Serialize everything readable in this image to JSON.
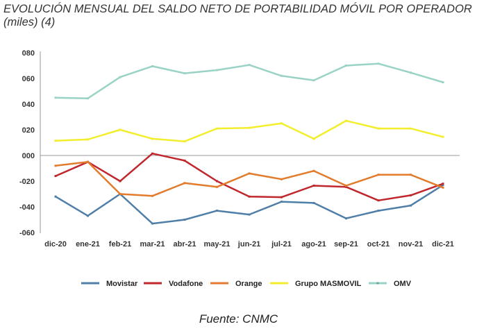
{
  "title": "EVOLUCIÓN MENSUAL DEL SALDO NETO DE PORTABILIDAD MÓVIL POR OPERADOR (miles) (4)",
  "source": "Fuente: CNMC",
  "chart_data": {
    "type": "line",
    "title": "EVOLUCIÓN MENSUAL DEL SALDO NETO DE PORTABILIDAD MÓVIL POR OPERADOR (miles) (4)",
    "xlabel": "",
    "ylabel": "",
    "ylim": [
      -60,
      80
    ],
    "yticks": [
      80,
      60,
      40,
      20,
      0,
      -20,
      -40,
      -60
    ],
    "ytick_labels": [
      "080",
      "060",
      "040",
      "020",
      "000",
      "-020",
      "-040",
      "-060"
    ],
    "grid": false,
    "legend": "bottom",
    "categories": [
      "dic-20",
      "ene-21",
      "feb-21",
      "mar-21",
      "abr-21",
      "may-21",
      "jun-21",
      "jul-21",
      "ago-21",
      "sep-21",
      "oct-21",
      "nov-21",
      "dic-21"
    ],
    "series": [
      {
        "name": "Movistar",
        "color": "#4f7fa8",
        "values": [
          -32,
          -47,
          -30,
          -53,
          -50,
          -43,
          -46,
          -36,
          -37,
          -49,
          -43,
          -39,
          -23
        ]
      },
      {
        "name": "Vodafone",
        "color": "#c0272d",
        "values": [
          -16,
          -5,
          -20,
          1.5,
          -4,
          -20,
          -32,
          -32.5,
          -23.5,
          -24.5,
          -35,
          -31,
          -22
        ]
      },
      {
        "name": "Orange",
        "color": "#e27b2c",
        "values": [
          -8,
          -5,
          -30,
          -31.5,
          -21.5,
          -24.5,
          -14,
          -18.5,
          -12,
          -23.5,
          -15,
          -15,
          -25
        ]
      },
      {
        "name": "Grupo MASMOVIL",
        "color": "#f2ee2b",
        "values": [
          11.5,
          12.5,
          20,
          13,
          11,
          21,
          21.5,
          25,
          13,
          27,
          21,
          21,
          14.5
        ]
      },
      {
        "name": "OMV",
        "color": "#9ad3c5",
        "values": [
          45,
          44.5,
          61,
          69.5,
          64,
          66.5,
          70.5,
          62,
          58.5,
          70,
          71.5,
          64.5,
          57
        ]
      }
    ]
  }
}
